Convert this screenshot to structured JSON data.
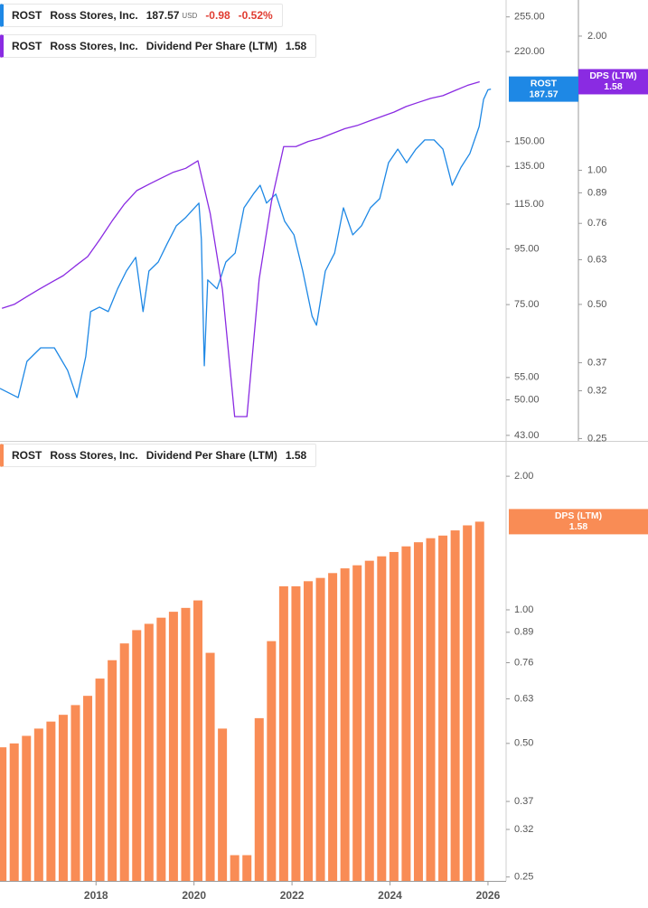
{
  "chart_data": [
    {
      "type": "line",
      "ticker": "ROST",
      "company": "Ross Stores, Inc.",
      "currency": "USD",
      "change": -0.98,
      "change_pct": {
        "value": -0.52,
        "label": "-0.52%"
      },
      "xlim": [
        2016.04,
        2026.37
      ],
      "ylim": [
        42,
        274
      ],
      "log_y": true,
      "y2lim": [
        0.247,
        2.41
      ],
      "log_y2": true,
      "yticks": [
        {
          "value": 255,
          "label": "255.00"
        },
        {
          "value": 220,
          "label": "220.00"
        },
        {
          "value": 150,
          "label": "150.00"
        },
        {
          "value": 135,
          "label": "135.00"
        },
        {
          "value": 115,
          "label": "115.00"
        },
        {
          "value": 95,
          "label": "95.00"
        },
        {
          "value": 75,
          "label": "75.00"
        },
        {
          "value": 55,
          "label": "55.00"
        },
        {
          "value": 50,
          "label": "50.00"
        },
        {
          "value": 43,
          "label": "43.00"
        }
      ],
      "y2ticks": [
        {
          "value": 2,
          "label": "2.00"
        },
        {
          "value": 1,
          "label": "1.00"
        },
        {
          "value": 0.89,
          "label": "0.89"
        },
        {
          "value": 0.76,
          "label": "0.76"
        },
        {
          "value": 0.63,
          "label": "0.63"
        },
        {
          "value": 0.5,
          "label": "0.50"
        },
        {
          "value": 0.37,
          "label": "0.37"
        },
        {
          "value": 0.32,
          "label": "0.32"
        },
        {
          "value": 0.25,
          "label": "0.25"
        }
      ],
      "series": [
        {
          "name": "ROST",
          "color": "#1e88e5",
          "x": [
            2016.04,
            2016.41,
            2016.59,
            2016.87,
            2017.15,
            2017.42,
            2017.61,
            2017.79,
            2017.89,
            2018.07,
            2018.25,
            2018.44,
            2018.62,
            2018.81,
            2018.96,
            2019.08,
            2019.27,
            2019.45,
            2019.64,
            2019.82,
            2020.01,
            2020.1,
            2020.15,
            2020.21,
            2020.28,
            2020.47,
            2020.65,
            2020.84,
            2021.02,
            2021.21,
            2021.35,
            2021.48,
            2021.67,
            2021.85,
            2022.04,
            2022.22,
            2022.41,
            2022.5,
            2022.68,
            2022.87,
            2023.05,
            2023.24,
            2023.42,
            2023.6,
            2023.79,
            2023.97,
            2024.16,
            2024.34,
            2024.53,
            2024.71,
            2024.9,
            2025.08,
            2025.27,
            2025.45,
            2025.63,
            2025.82,
            2025.91,
            2026.0,
            2026.06
          ],
          "values": [
            52.5,
            50.5,
            58.9,
            62.4,
            62.4,
            56.7,
            50.5,
            60.1,
            72.8,
            74.2,
            72.8,
            80.2,
            86.5,
            91.7,
            72.8,
            86.5,
            89.9,
            97.1,
            104.9,
            108.4,
            113.2,
            115.5,
            99.0,
            57.8,
            83.3,
            80.2,
            89.9,
            93.4,
            113.2,
            120.0,
            124.6,
            115.5,
            120.0,
            106.9,
            100.9,
            86.5,
            71.4,
            68.7,
            86.5,
            93.4,
            113.2,
            100.9,
            104.9,
            113.2,
            117.7,
            137.1,
            145.3,
            137.1,
            145.3,
            151.1,
            151.1,
            145.3,
            124.6,
            134.5,
            142.6,
            160.0,
            179.5,
            187.0,
            187.57
          ]
        },
        {
          "name": "Dividend Per Share (LTM)",
          "short_name": "DPS (LTM)",
          "color": "#8a2be2",
          "axis": "y2",
          "x": [
            2016.08,
            2016.33,
            2016.58,
            2016.83,
            2017.08,
            2017.33,
            2017.58,
            2017.83,
            2018.08,
            2018.33,
            2018.58,
            2018.83,
            2019.08,
            2019.33,
            2019.58,
            2019.83,
            2020.08,
            2020.33,
            2020.58,
            2020.83,
            2021.08,
            2021.33,
            2021.58,
            2021.83,
            2022.08,
            2022.33,
            2022.58,
            2022.83,
            2023.08,
            2023.33,
            2023.58,
            2023.83,
            2024.08,
            2024.33,
            2024.58,
            2024.83,
            2025.08,
            2025.33,
            2025.58,
            2025.83
          ],
          "values": [
            0.49,
            0.5,
            0.52,
            0.54,
            0.56,
            0.58,
            0.61,
            0.64,
            0.7,
            0.77,
            0.84,
            0.9,
            0.93,
            0.96,
            0.99,
            1.01,
            1.05,
            0.8,
            0.54,
            0.28,
            0.28,
            0.57,
            0.85,
            1.13,
            1.13,
            1.16,
            1.18,
            1.21,
            1.24,
            1.26,
            1.29,
            1.32,
            1.35,
            1.39,
            1.42,
            1.45,
            1.47,
            1.51,
            1.55,
            1.58
          ]
        }
      ]
    },
    {
      "type": "bar",
      "ticker": "ROST",
      "company": "Ross Stores, Inc.",
      "xlim": [
        2016.04,
        2026.37
      ],
      "xticks": [
        2018,
        2020,
        2022,
        2024,
        2026
      ],
      "ylim": [
        0.245,
        2.38
      ],
      "log_y": true,
      "yticks": [
        {
          "value": 2,
          "label": "2.00"
        },
        {
          "value": 1,
          "label": "1.00"
        },
        {
          "value": 0.89,
          "label": "0.89"
        },
        {
          "value": 0.76,
          "label": "0.76"
        },
        {
          "value": 0.63,
          "label": "0.63"
        },
        {
          "value": 0.5,
          "label": "0.50"
        },
        {
          "value": 0.37,
          "label": "0.37"
        },
        {
          "value": 0.32,
          "label": "0.32"
        },
        {
          "value": 0.25,
          "label": "0.25"
        }
      ],
      "series": [
        {
          "name": "Dividend Per Share (LTM)",
          "short_name": "DPS (LTM)",
          "color": "#f98c55",
          "x": [
            2016.08,
            2016.33,
            2016.58,
            2016.83,
            2017.08,
            2017.33,
            2017.58,
            2017.83,
            2018.08,
            2018.33,
            2018.58,
            2018.83,
            2019.08,
            2019.33,
            2019.58,
            2019.83,
            2020.08,
            2020.33,
            2020.58,
            2020.83,
            2021.08,
            2021.33,
            2021.58,
            2021.83,
            2022.08,
            2022.33,
            2022.58,
            2022.83,
            2023.08,
            2023.33,
            2023.58,
            2023.83,
            2024.08,
            2024.33,
            2024.58,
            2024.83,
            2025.08,
            2025.33,
            2025.58,
            2025.83
          ],
          "values": [
            0.49,
            0.5,
            0.52,
            0.54,
            0.56,
            0.58,
            0.61,
            0.64,
            0.7,
            0.77,
            0.84,
            0.9,
            0.93,
            0.96,
            0.99,
            1.01,
            1.05,
            0.8,
            0.54,
            0.28,
            0.28,
            0.57,
            0.85,
            1.13,
            1.13,
            1.16,
            1.18,
            1.21,
            1.24,
            1.26,
            1.29,
            1.32,
            1.35,
            1.39,
            1.42,
            1.45,
            1.47,
            1.51,
            1.55,
            1.58
          ]
        }
      ]
    }
  ]
}
